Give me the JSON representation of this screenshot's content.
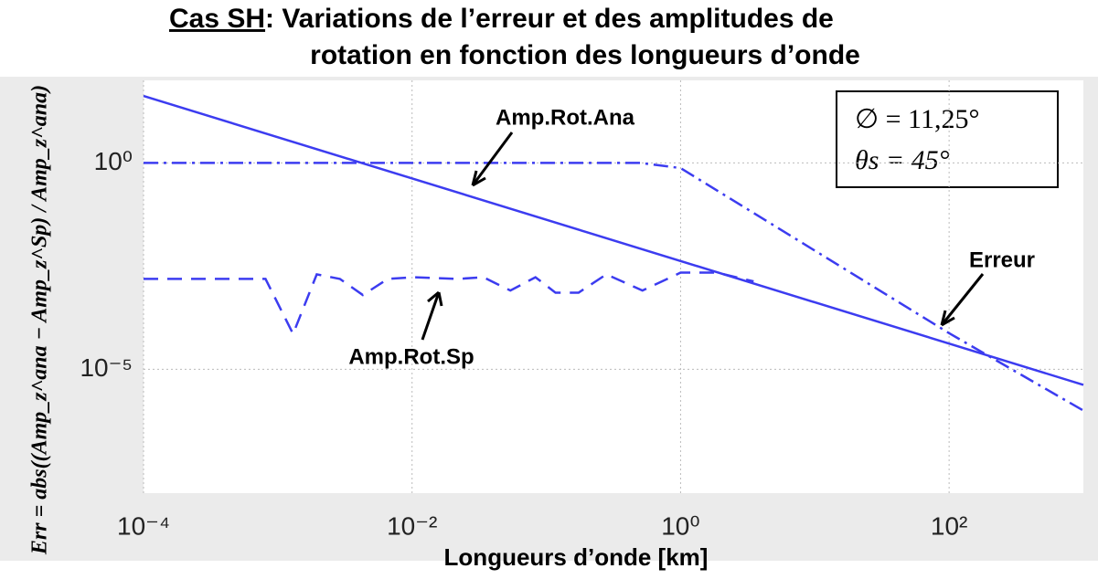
{
  "chart_data": {
    "type": "line",
    "title_underlined": "Cas SH",
    "title": [
      ": Variations de l’erreur et des amplitudes de",
      "rotation en fonction des longueurs d’onde"
    ],
    "xlabel": "Longueurs d’onde [km]",
    "ylabel": "Err = abs((Amp_z^ana − Amp_z^Sp) / Amp_z^ana)",
    "log_x": true,
    "log_y": true,
    "grid": true,
    "xlim": [
      0.0001,
      1000
    ],
    "ylim": [
      1e-08,
      100
    ],
    "xticks": [
      {
        "value": 0.0001,
        "label": "10⁻⁴"
      },
      {
        "value": 0.01,
        "label": "10⁻²"
      },
      {
        "value": 1,
        "label": "10⁰"
      },
      {
        "value": 100,
        "label": "10²"
      }
    ],
    "yticks": [
      {
        "value": 1e-05,
        "label": "10⁻⁵"
      },
      {
        "value": 1,
        "label": "10⁰"
      }
    ],
    "series": [
      {
        "name": "Amp.Rot.Ana",
        "color": "#3c3cf0",
        "dash": "solid",
        "x": [
          0.0001,
          1000
        ],
        "values": [
          42,
          4.2e-06
        ]
      },
      {
        "name": "Amp.Rot.Sp",
        "color": "#3c3cf0",
        "dash": "dashed",
        "x": [
          0.0001,
          0.00081,
          0.0013,
          0.00195,
          0.0029,
          0.0043,
          0.0066,
          0.0102,
          0.022,
          0.034,
          0.054,
          0.083,
          0.117,
          0.174,
          0.28,
          0.52,
          1,
          1.86,
          3.5
        ],
        "values": [
          0.00155,
          0.00155,
          7.2e-05,
          0.002,
          0.00155,
          0.00063,
          0.00155,
          0.0017,
          0.00155,
          0.0017,
          0.00081,
          0.0017,
          0.00072,
          0.00072,
          0.002,
          0.00081,
          0.0022,
          0.0022,
          0.00135
        ]
      },
      {
        "name": "Erreur",
        "color": "#3c3cf0",
        "dash": "dashdot",
        "x": [
          0.0001,
          0.5,
          1,
          10,
          100,
          1000
        ],
        "values": [
          1,
          1,
          0.75,
          0.0075,
          7.5e-05,
          1e-06
        ]
      }
    ],
    "parameters": [
      "∅  = 11,25°",
      "θs = 45°"
    ]
  }
}
